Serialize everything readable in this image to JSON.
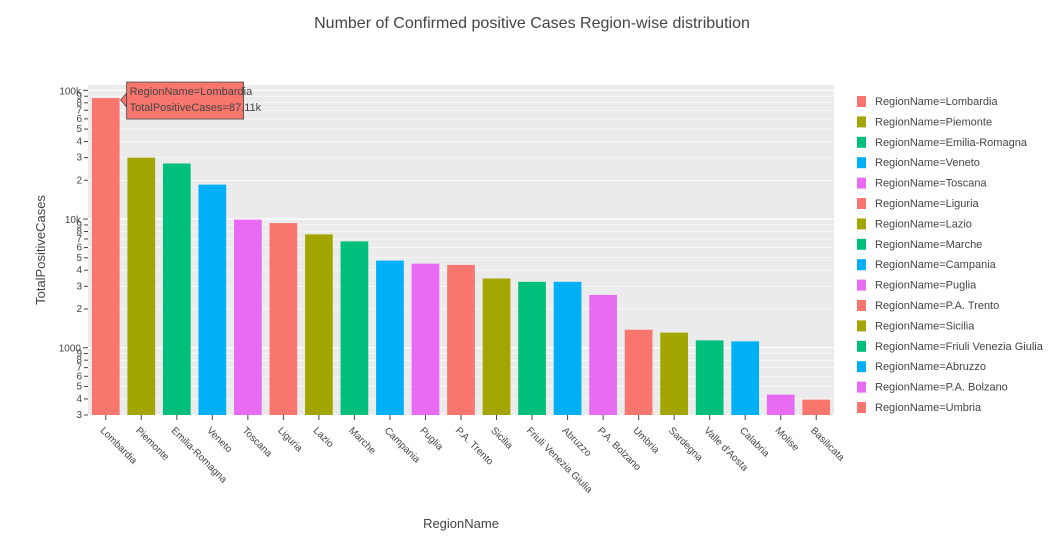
{
  "chart_data": {
    "type": "bar",
    "title": "Number of Confirmed positive Cases Region-wise distribution",
    "xlabel": "RegionName",
    "ylabel": "TotalPositiveCases",
    "yscale": "log",
    "ylim": [
      300,
      110000
    ],
    "grid": true,
    "legend_position": "right",
    "categories": [
      "Lombardia",
      "Piemonte",
      "Emilia-Romagna",
      "Veneto",
      "Toscana",
      "Liguria",
      "Lazio",
      "Marche",
      "Campania",
      "Puglia",
      "P.A. Trento",
      "Sicilia",
      "Friuli Venezia Giulia",
      "Abruzzo",
      "P.A. Bolzano",
      "Umbria",
      "Sardegna",
      "Valle d'Aosta",
      "Calabria",
      "Molise",
      "Basilicata"
    ],
    "values": [
      87110,
      30000,
      27000,
      18500,
      9900,
      9300,
      7600,
      6700,
      4750,
      4500,
      4400,
      3450,
      3250,
      3250,
      2570,
      1380,
      1310,
      1140,
      1120,
      432,
      395
    ],
    "colors": [
      "#F8766D",
      "#A3A500",
      "#00BF7D",
      "#00B0F6",
      "#E76BF3",
      "#F8766D",
      "#A3A500",
      "#00BF7D",
      "#00B0F6",
      "#E76BF3",
      "#F8766D",
      "#A3A500",
      "#00BF7D",
      "#00B0F6",
      "#E76BF3",
      "#F8766D",
      "#A3A500",
      "#00BF7D",
      "#00B0F6",
      "#E76BF3",
      "#F8766D"
    ],
    "y_major_ticks": [
      {
        "value": 1000,
        "label": "1000"
      },
      {
        "value": 10000,
        "label": "10k"
      },
      {
        "value": 100000,
        "label": "100k"
      }
    ],
    "y_minor_tick_digits": [
      2,
      3,
      4,
      5,
      6,
      7,
      8,
      9
    ],
    "legend": [
      {
        "label": "RegionName=Lombardia",
        "color": "#F8766D"
      },
      {
        "label": "RegionName=Piemonte",
        "color": "#A3A500"
      },
      {
        "label": "RegionName=Emilia-Romagna",
        "color": "#00BF7D"
      },
      {
        "label": "RegionName=Veneto",
        "color": "#00B0F6"
      },
      {
        "label": "RegionName=Toscana",
        "color": "#E76BF3"
      },
      {
        "label": "RegionName=Liguria",
        "color": "#F8766D"
      },
      {
        "label": "RegionName=Lazio",
        "color": "#A3A500"
      },
      {
        "label": "RegionName=Marche",
        "color": "#00BF7D"
      },
      {
        "label": "RegionName=Campania",
        "color": "#00B0F6"
      },
      {
        "label": "RegionName=Puglia",
        "color": "#E76BF3"
      },
      {
        "label": "RegionName=P.A. Trento",
        "color": "#F8766D"
      },
      {
        "label": "RegionName=Sicilia",
        "color": "#A3A500"
      },
      {
        "label": "RegionName=Friuli Venezia Giulia",
        "color": "#00BF7D"
      },
      {
        "label": "RegionName=Abruzzo",
        "color": "#00B0F6"
      },
      {
        "label": "RegionName=P.A. Bolzano",
        "color": "#E76BF3"
      },
      {
        "label": "RegionName=Umbria",
        "color": "#F8766D"
      }
    ],
    "hover": {
      "category": "Lombardia",
      "lines": [
        "RegionName=Lombardia",
        "TotalPositiveCases=87.11k"
      ]
    },
    "plot_bg": "#EBEBEB"
  }
}
